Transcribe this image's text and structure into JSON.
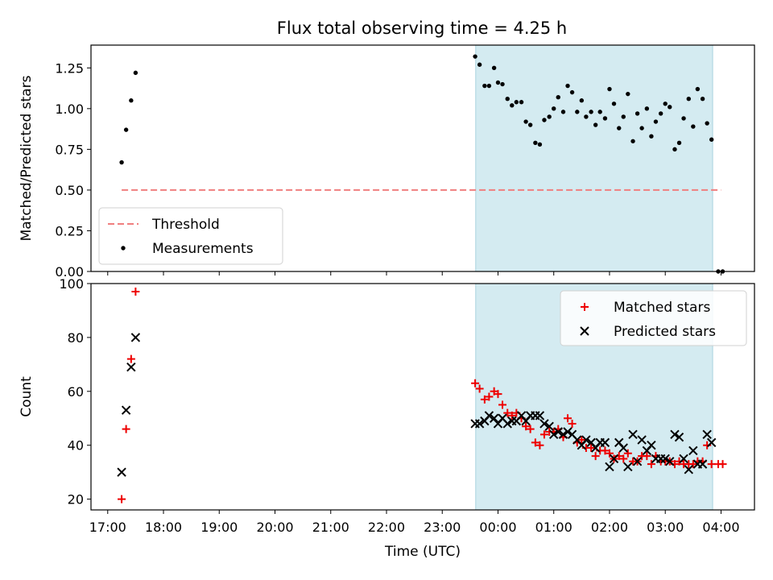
{
  "figure": {
    "title": "Flux total observing time = 4.25 h"
  },
  "chart_data": [
    {
      "type": "scatter",
      "title": "Flux total observing time = 4.25 h",
      "xlabel": "",
      "ylabel": "Matched/Predicted stars",
      "xlim": [
        16.7,
        28.6
      ],
      "ylim": [
        0,
        1.39
      ],
      "yticks": [
        0.0,
        0.25,
        0.5,
        0.75,
        1.0,
        1.25
      ],
      "ytick_labels": [
        "0.00",
        "0.25",
        "0.50",
        "0.75",
        "1.00",
        "1.25"
      ],
      "legend_position": "lower-left",
      "shaded_region": {
        "x_start": 23.6,
        "x_end": 27.85,
        "color": "#d4ebf1"
      },
      "threshold": {
        "name": "Threshold",
        "y": 0.5,
        "x_start": 17.25,
        "x_end": 28.0,
        "color": "#f07f7f"
      },
      "series": [
        {
          "name": "Measurements",
          "color": "#000000",
          "marker": "dot",
          "points": [
            [
              17.25,
              0.67
            ],
            [
              17.33,
              0.87
            ],
            [
              17.42,
              1.05
            ],
            [
              17.5,
              1.22
            ],
            [
              23.59,
              1.32
            ],
            [
              23.67,
              1.27
            ],
            [
              23.76,
              1.14
            ],
            [
              23.84,
              1.14
            ],
            [
              23.93,
              1.25
            ],
            [
              24.0,
              1.16
            ],
            [
              24.08,
              1.15
            ],
            [
              24.17,
              1.06
            ],
            [
              24.25,
              1.02
            ],
            [
              24.33,
              1.04
            ],
            [
              24.42,
              1.04
            ],
            [
              24.5,
              0.92
            ],
            [
              24.58,
              0.9
            ],
            [
              24.67,
              0.79
            ],
            [
              24.75,
              0.78
            ],
            [
              24.83,
              0.93
            ],
            [
              24.92,
              0.95
            ],
            [
              25.0,
              1.0
            ],
            [
              25.08,
              1.07
            ],
            [
              25.17,
              0.98
            ],
            [
              25.25,
              1.14
            ],
            [
              25.33,
              1.1
            ],
            [
              25.42,
              0.98
            ],
            [
              25.5,
              1.05
            ],
            [
              25.58,
              0.95
            ],
            [
              25.67,
              0.98
            ],
            [
              25.75,
              0.9
            ],
            [
              25.83,
              0.98
            ],
            [
              25.92,
              0.94
            ],
            [
              26.0,
              1.12
            ],
            [
              26.08,
              1.03
            ],
            [
              26.17,
              0.88
            ],
            [
              26.25,
              0.95
            ],
            [
              26.33,
              1.09
            ],
            [
              26.42,
              0.8
            ],
            [
              26.5,
              0.97
            ],
            [
              26.58,
              0.88
            ],
            [
              26.67,
              1.0
            ],
            [
              26.75,
              0.83
            ],
            [
              26.83,
              0.92
            ],
            [
              26.92,
              0.97
            ],
            [
              27.0,
              1.03
            ],
            [
              27.08,
              1.01
            ],
            [
              27.17,
              0.75
            ],
            [
              27.25,
              0.79
            ],
            [
              27.33,
              0.94
            ],
            [
              27.42,
              1.06
            ],
            [
              27.5,
              0.89
            ],
            [
              27.58,
              1.12
            ],
            [
              27.67,
              1.06
            ],
            [
              27.75,
              0.91
            ],
            [
              27.83,
              0.81
            ],
            [
              27.95,
              0.0
            ],
            [
              28.03,
              0.0
            ]
          ]
        }
      ],
      "legend": [
        "Threshold",
        "Measurements"
      ]
    },
    {
      "type": "scatter",
      "title": "",
      "xlabel": "Time (UTC)",
      "ylabel": "Count",
      "xlim": [
        16.7,
        28.6
      ],
      "ylim": [
        16,
        100
      ],
      "yticks": [
        20,
        40,
        60,
        80,
        100
      ],
      "ytick_labels": [
        "20",
        "40",
        "60",
        "80",
        "100"
      ],
      "xticks": [
        17,
        18,
        19,
        20,
        21,
        22,
        23,
        24,
        25,
        26,
        27,
        28
      ],
      "xtick_labels": [
        "17:00",
        "18:00",
        "19:00",
        "20:00",
        "21:00",
        "22:00",
        "23:00",
        "00:00",
        "01:00",
        "02:00",
        "03:00",
        "04:00"
      ],
      "legend_position": "upper-right",
      "shaded_region": {
        "x_start": 23.6,
        "x_end": 27.85,
        "color": "#d4ebf1"
      },
      "series": [
        {
          "name": "Matched stars",
          "color": "#ee0000",
          "marker": "plus",
          "points": [
            [
              17.25,
              20
            ],
            [
              17.33,
              46
            ],
            [
              17.42,
              72
            ],
            [
              17.5,
              97
            ],
            [
              23.59,
              63
            ],
            [
              23.67,
              61
            ],
            [
              23.76,
              57
            ],
            [
              23.84,
              58
            ],
            [
              23.93,
              60
            ],
            [
              24.0,
              59
            ],
            [
              24.08,
              55
            ],
            [
              24.17,
              52
            ],
            [
              24.25,
              51
            ],
            [
              24.33,
              52
            ],
            [
              24.42,
              50
            ],
            [
              24.5,
              47
            ],
            [
              24.58,
              46
            ],
            [
              24.67,
              41
            ],
            [
              24.75,
              40
            ],
            [
              24.83,
              44
            ],
            [
              24.92,
              45
            ],
            [
              25.0,
              45
            ],
            [
              25.08,
              46
            ],
            [
              25.17,
              43
            ],
            [
              25.25,
              50
            ],
            [
              25.33,
              48
            ],
            [
              25.42,
              41
            ],
            [
              25.5,
              42
            ],
            [
              25.58,
              39
            ],
            [
              25.67,
              39
            ],
            [
              25.75,
              36
            ],
            [
              25.83,
              38
            ],
            [
              25.92,
              38
            ],
            [
              26.0,
              37
            ],
            [
              26.08,
              35
            ],
            [
              26.17,
              36
            ],
            [
              26.25,
              35
            ],
            [
              26.33,
              37
            ],
            [
              26.42,
              34
            ],
            [
              26.5,
              34
            ],
            [
              26.58,
              36
            ],
            [
              26.67,
              36
            ],
            [
              26.75,
              33
            ],
            [
              26.83,
              36
            ],
            [
              26.92,
              34
            ],
            [
              27.0,
              34
            ],
            [
              27.08,
              34
            ],
            [
              27.17,
              33
            ],
            [
              27.25,
              34
            ],
            [
              27.33,
              33
            ],
            [
              27.42,
              33
            ],
            [
              27.5,
              33
            ],
            [
              27.58,
              34
            ],
            [
              27.67,
              34
            ],
            [
              27.75,
              40
            ],
            [
              27.83,
              33
            ],
            [
              27.95,
              33
            ],
            [
              28.03,
              33
            ]
          ]
        },
        {
          "name": "Predicted stars",
          "color": "#000000",
          "marker": "cross",
          "points": [
            [
              17.25,
              30
            ],
            [
              17.33,
              53
            ],
            [
              17.42,
              69
            ],
            [
              17.5,
              80
            ],
            [
              23.59,
              48
            ],
            [
              23.67,
              48
            ],
            [
              23.76,
              49
            ],
            [
              23.84,
              51
            ],
            [
              23.93,
              50
            ],
            [
              24.0,
              48
            ],
            [
              24.08,
              50
            ],
            [
              24.17,
              48
            ],
            [
              24.25,
              49
            ],
            [
              24.33,
              49
            ],
            [
              24.42,
              51
            ],
            [
              24.5,
              49
            ],
            [
              24.58,
              51
            ],
            [
              24.67,
              51
            ],
            [
              24.75,
              51
            ],
            [
              24.83,
              48
            ],
            [
              24.92,
              47
            ],
            [
              25.0,
              44
            ],
            [
              25.08,
              45
            ],
            [
              25.17,
              44
            ],
            [
              25.25,
              45
            ],
            [
              25.33,
              44
            ],
            [
              25.42,
              42
            ],
            [
              25.5,
              40
            ],
            [
              25.58,
              42
            ],
            [
              25.67,
              41
            ],
            [
              25.75,
              39
            ],
            [
              25.83,
              41
            ],
            [
              25.92,
              41
            ],
            [
              26.0,
              32
            ],
            [
              26.08,
              35
            ],
            [
              26.17,
              41
            ],
            [
              26.25,
              39
            ],
            [
              26.33,
              32
            ],
            [
              26.42,
              44
            ],
            [
              26.5,
              34
            ],
            [
              26.58,
              42
            ],
            [
              26.67,
              38
            ],
            [
              26.75,
              40
            ],
            [
              26.83,
              35
            ],
            [
              26.92,
              35
            ],
            [
              27.0,
              35
            ],
            [
              27.08,
              34
            ],
            [
              27.17,
              44
            ],
            [
              27.25,
              43
            ],
            [
              27.33,
              35
            ],
            [
              27.42,
              31
            ],
            [
              27.5,
              38
            ],
            [
              27.58,
              33
            ],
            [
              27.67,
              33
            ],
            [
              27.75,
              44
            ],
            [
              27.83,
              41
            ]
          ]
        }
      ],
      "legend": [
        "Matched stars",
        "Predicted stars"
      ]
    }
  ]
}
